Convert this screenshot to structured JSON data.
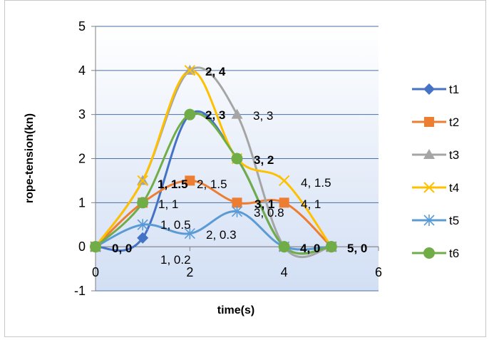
{
  "chart_data": {
    "type": "line",
    "xlabel": "time(s)",
    "ylabel": "rope-tension(kn)",
    "xlim": [
      0,
      6
    ],
    "ylim": [
      -1,
      5
    ],
    "x_ticks": [
      "0",
      "2",
      "4",
      "6"
    ],
    "y_ticks": [
      "-1",
      "0",
      "1",
      "2",
      "3",
      "4",
      "5"
    ],
    "grid": "horizontal",
    "smooth": true,
    "legend_position": "right",
    "series": [
      {
        "name": "t1",
        "color": "#4472c4",
        "marker": "diamond",
        "points": [
          [
            0,
            0
          ],
          [
            1,
            0.2
          ],
          [
            2,
            3
          ],
          [
            3,
            2
          ],
          [
            4,
            0
          ],
          [
            5,
            0
          ]
        ]
      },
      {
        "name": "t2",
        "color": "#ed7d31",
        "marker": "square",
        "points": [
          [
            0,
            0
          ],
          [
            1,
            1
          ],
          [
            2,
            1.5
          ],
          [
            3,
            1
          ],
          [
            4,
            1
          ],
          [
            5,
            0
          ]
        ]
      },
      {
        "name": "t3",
        "color": "#a5a5a5",
        "marker": "triangle",
        "points": [
          [
            0,
            0
          ],
          [
            1,
            1.5
          ],
          [
            2,
            4
          ],
          [
            3,
            3
          ],
          [
            4,
            0
          ],
          [
            5,
            0
          ]
        ]
      },
      {
        "name": "t4",
        "color": "#ffc000",
        "marker": "x",
        "points": [
          [
            0,
            0
          ],
          [
            1,
            1.5
          ],
          [
            2,
            4
          ],
          [
            3,
            2
          ],
          [
            4,
            1.5
          ],
          [
            5,
            0
          ]
        ]
      },
      {
        "name": "t5",
        "color": "#5b9bd5",
        "marker": "star",
        "points": [
          [
            0,
            0
          ],
          [
            1,
            0.5
          ],
          [
            2,
            0.3
          ],
          [
            3,
            0.8
          ],
          [
            4,
            0
          ],
          [
            5,
            0
          ]
        ]
      },
      {
        "name": "t6",
        "color": "#70ad47",
        "marker": "circle",
        "points": [
          [
            0,
            0
          ],
          [
            1,
            1
          ],
          [
            2,
            3
          ],
          [
            3,
            2
          ],
          [
            4,
            0
          ],
          [
            5,
            0
          ]
        ]
      }
    ],
    "data_labels": [
      {
        "text": "0, 0",
        "bold": true
      },
      {
        "text": "1, 0.2",
        "bold": false
      },
      {
        "text": "1, 0.5",
        "bold": false
      },
      {
        "text": "1, 1",
        "bold": false
      },
      {
        "text": "1, 1.5",
        "bold": true
      },
      {
        "text": "2, 1.5",
        "bold": false
      },
      {
        "text": "2, 0.3",
        "bold": false
      },
      {
        "text": "2, 3",
        "bold": true
      },
      {
        "text": "2, 4",
        "bold": true
      },
      {
        "text": "3, 3",
        "bold": false
      },
      {
        "text": "3, 2",
        "bold": true
      },
      {
        "text": "3, 1",
        "bold": true
      },
      {
        "text": "3, 0.8",
        "bold": false
      },
      {
        "text": "4, 1.5",
        "bold": false
      },
      {
        "text": "4, 1",
        "bold": false
      },
      {
        "text": "4, 0",
        "bold": true
      },
      {
        "text": "5, 0",
        "bold": true
      }
    ]
  }
}
